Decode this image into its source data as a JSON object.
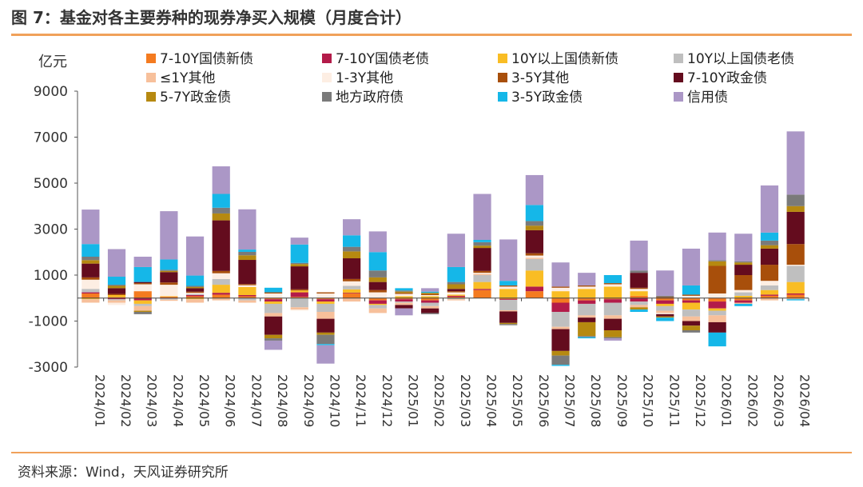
{
  "page": {
    "title": "图 7：基金对各主要券种的现券净买入规模（月度合计）",
    "source": "资料来源：Wind，天风证券研究所",
    "accent_color": "#f0a15a"
  },
  "chart_data": {
    "type": "bar",
    "stacked": true,
    "title": "",
    "ylabel": "亿元",
    "xlabel": "",
    "ylim": [
      -3000,
      9000
    ],
    "yticks": [
      9000,
      7000,
      5000,
      3000,
      1000,
      -1000,
      -3000
    ],
    "grid": false,
    "legend_position": "top",
    "categories": [
      "2024/01",
      "2024/02",
      "2024/03",
      "2024/04",
      "2024/05",
      "2024/06",
      "2024/07",
      "2024/08",
      "2024/09",
      "2024/10",
      "2024/11",
      "2024/12",
      "2025/01",
      "2025/02",
      "2025/03",
      "2025/04",
      "2025/05",
      "2025/06",
      "2025/07",
      "2025/08",
      "2025/09",
      "2025/10",
      "2025/11",
      "2025/12",
      "2026/01",
      "2026/02",
      "2026/03",
      "2026/04"
    ],
    "series": [
      {
        "name": "7-10Y国债新债",
        "color": "#f47b20",
        "values": [
          200,
          50,
          300,
          60,
          80,
          150,
          80,
          -50,
          50,
          -50,
          200,
          -100,
          -50,
          -100,
          50,
          350,
          -50,
          300,
          -200,
          -100,
          -50,
          100,
          -100,
          -100,
          -150,
          -100,
          100,
          150
        ]
      },
      {
        "name": "7-10Y国债老债",
        "color": "#b31b49",
        "values": [
          50,
          -50,
          -100,
          -20,
          50,
          80,
          50,
          -100,
          200,
          -100,
          30,
          -150,
          -100,
          -100,
          50,
          50,
          -30,
          200,
          -400,
          -150,
          -150,
          -150,
          -150,
          -100,
          -300,
          -100,
          50,
          50
        ]
      },
      {
        "name": "10Y以上国债新债",
        "color": "#f9bd24",
        "values": [
          -50,
          80,
          -150,
          20,
          -50,
          350,
          350,
          -100,
          80,
          -100,
          150,
          -50,
          80,
          80,
          50,
          300,
          400,
          700,
          300,
          400,
          500,
          200,
          -100,
          -300,
          -100,
          100,
          200,
          500
        ]
      },
      {
        "name": "10Y以上国债老债",
        "color": "#bfbfbf",
        "values": [
          150,
          -50,
          -100,
          -50,
          50,
          250,
          -100,
          -400,
          -400,
          -350,
          150,
          -150,
          -50,
          -150,
          -50,
          300,
          -450,
          500,
          -650,
          -500,
          -550,
          -150,
          -200,
          -300,
          -200,
          150,
          200,
          700
        ]
      },
      {
        "name": "≤1Y其他",
        "color": "#f7c09b",
        "values": [
          -150,
          -100,
          -200,
          -50,
          -150,
          -100,
          -100,
          -150,
          -100,
          -300,
          -150,
          -200,
          -100,
          -100,
          -50,
          50,
          -50,
          50,
          -100,
          -100,
          -150,
          -100,
          -100,
          -200,
          -300,
          -50,
          -100,
          -50
        ]
      },
      {
        "name": "1-3Y其他",
        "color": "#fdeee3",
        "values": [
          400,
          -100,
          300,
          500,
          50,
          250,
          80,
          200,
          -50,
          200,
          200,
          250,
          100,
          50,
          100,
          50,
          100,
          100,
          150,
          100,
          100,
          100,
          -50,
          100,
          200,
          100,
          200,
          50
        ]
      },
      {
        "name": "3-5Y其他",
        "color": "#a84f0b",
        "values": [
          100,
          50,
          50,
          100,
          50,
          100,
          50,
          50,
          50,
          50,
          100,
          100,
          50,
          50,
          50,
          80,
          50,
          100,
          50,
          50,
          50,
          50,
          50,
          50,
          1200,
          650,
          700,
          900
        ]
      },
      {
        "name": "7-10Y政金债",
        "color": "#640c1e",
        "values": [
          600,
          250,
          50,
          450,
          150,
          2200,
          1050,
          -800,
          1000,
          -600,
          900,
          350,
          -150,
          -200,
          100,
          1000,
          -500,
          1000,
          -950,
          -200,
          -500,
          650,
          -100,
          -200,
          -450,
          450,
          700,
          1400
        ]
      },
      {
        "name": "5-7Y政金债",
        "color": "#b68910",
        "values": [
          150,
          100,
          -50,
          50,
          50,
          300,
          200,
          -150,
          100,
          -100,
          300,
          200,
          50,
          50,
          200,
          100,
          -50,
          200,
          -200,
          -600,
          -300,
          -100,
          -50,
          -200,
          200,
          100,
          150,
          250
        ]
      },
      {
        "name": "地方政府债",
        "color": "#7a7a7a",
        "values": [
          150,
          50,
          -100,
          50,
          50,
          250,
          150,
          -100,
          50,
          -400,
          200,
          300,
          50,
          -50,
          100,
          150,
          -50,
          200,
          -400,
          -50,
          -50,
          100,
          50,
          -100,
          50,
          50,
          200,
          500
        ]
      },
      {
        "name": "3-5Y政金债",
        "color": "#15b7e8",
        "values": [
          550,
          350,
          650,
          450,
          450,
          600,
          100,
          200,
          800,
          -50,
          500,
          800,
          100,
          50,
          650,
          100,
          200,
          700,
          -50,
          -50,
          350,
          -100,
          -150,
          400,
          -600,
          -100,
          350,
          -50
        ]
      },
      {
        "name": "信用债",
        "color": "#ab97c6",
        "values": [
          1500,
          1200,
          450,
          2100,
          1700,
          1200,
          1750,
          -400,
          300,
          -800,
          700,
          900,
          -300,
          150,
          1450,
          2000,
          1800,
          1300,
          1050,
          550,
          -100,
          1300,
          1100,
          1600,
          1200,
          1200,
          2050,
          2750
        ]
      }
    ]
  }
}
